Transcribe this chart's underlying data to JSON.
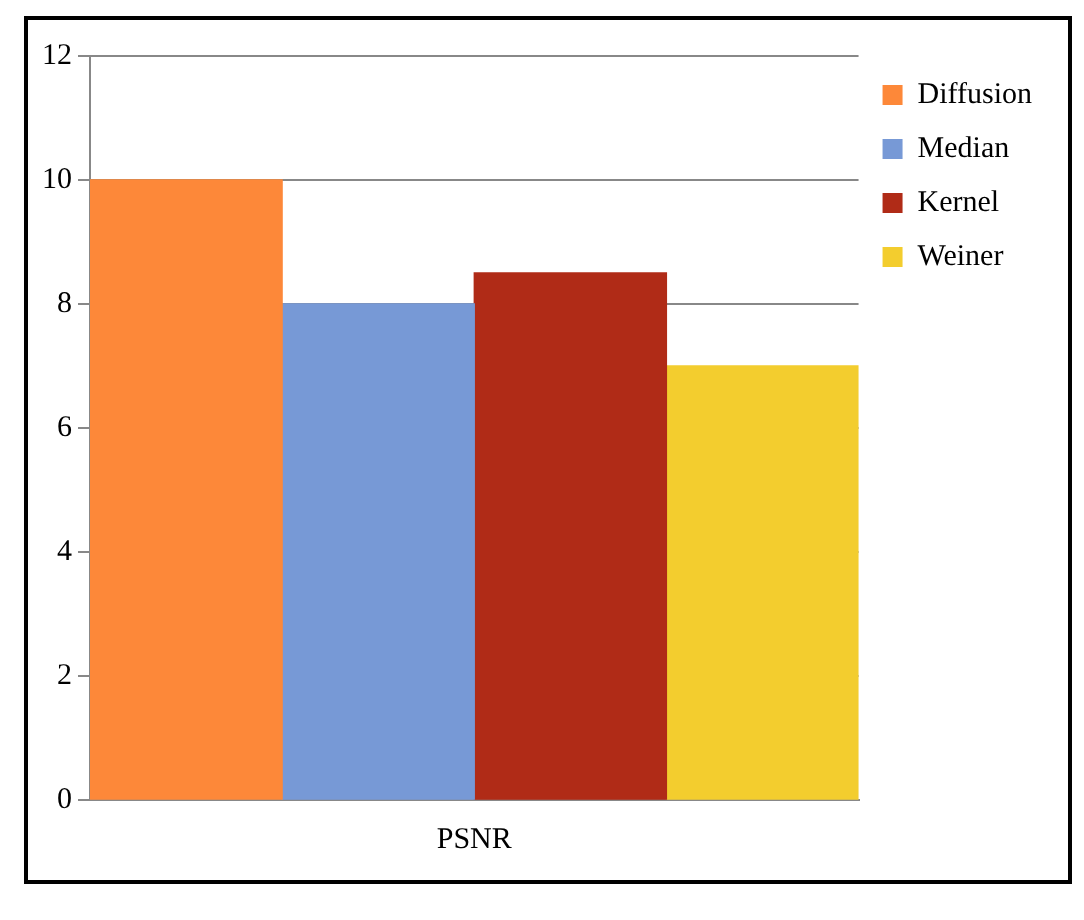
{
  "chart_data": {
    "type": "bar",
    "categories": [
      "PSNR"
    ],
    "series": [
      {
        "name": "Diffusion",
        "color": "#fd8839",
        "values": [
          10
        ]
      },
      {
        "name": "Median",
        "color": "#7799d6",
        "values": [
          8
        ]
      },
      {
        "name": "Kernel",
        "color": "#b02b17",
        "values": [
          8.5
        ]
      },
      {
        "name": "Weiner",
        "color": "#f3cd2e",
        "values": [
          7
        ]
      }
    ],
    "ylim": [
      0,
      12
    ],
    "yticks": [
      0,
      2,
      4,
      6,
      8,
      10,
      12
    ],
    "grid": "y",
    "legend": "top right"
  }
}
